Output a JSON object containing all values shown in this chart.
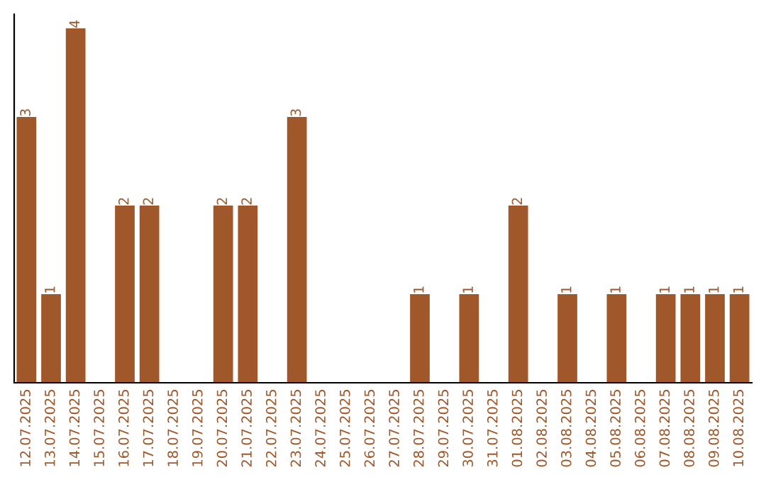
{
  "chart_data": {
    "type": "bar",
    "categories": [
      "12.07.2025",
      "13.07.2025",
      "14.07.2025",
      "15.07.2025",
      "16.07.2025",
      "17.07.2025",
      "18.07.2025",
      "19.07.2025",
      "20.07.2025",
      "21.07.2025",
      "22.07.2025",
      "23.07.2025",
      "24.07.2025",
      "25.07.2025",
      "26.07.2025",
      "27.07.2025",
      "28.07.2025",
      "29.07.2025",
      "30.07.2025",
      "31.07.2025",
      "01.08.2025",
      "02.08.2025",
      "03.08.2025",
      "04.08.2025",
      "05.08.2025",
      "06.08.2025",
      "07.08.2025",
      "08.08.2025",
      "09.08.2025",
      "10.08.2025"
    ],
    "values": [
      3,
      1,
      4,
      0,
      2,
      2,
      0,
      0,
      2,
      2,
      0,
      3,
      0,
      0,
      0,
      0,
      1,
      0,
      1,
      0,
      2,
      0,
      1,
      0,
      1,
      0,
      1,
      1,
      1,
      1
    ],
    "value_labels": [
      "3",
      "1",
      "4",
      null,
      "2",
      "2",
      null,
      null,
      "2",
      "2",
      null,
      "3",
      null,
      null,
      null,
      null,
      "1",
      null,
      "1",
      null,
      "2",
      null,
      "1",
      null,
      "1",
      null,
      "1",
      "1",
      "1",
      "1"
    ],
    "color": "#a0582a",
    "grid": false,
    "legend": false
  }
}
